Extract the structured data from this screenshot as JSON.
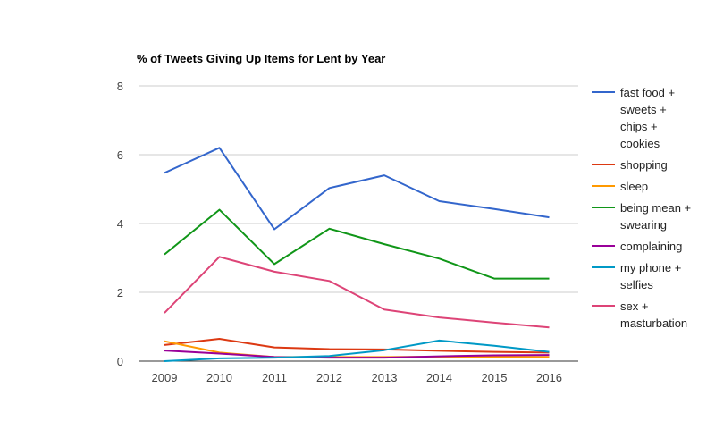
{
  "chart_data": {
    "type": "line",
    "title": "% of Tweets Giving Up Items for Lent by Year",
    "xlabel": "",
    "ylabel": "",
    "x": [
      "2009",
      "2010",
      "2011",
      "2012",
      "2013",
      "2014",
      "2015",
      "2016"
    ],
    "ylim": [
      0,
      8
    ],
    "yticks": [
      "0",
      "2",
      "4",
      "6",
      "8"
    ],
    "grid": true,
    "legend_position": "right",
    "series": [
      {
        "name": "fast food + sweets + chips + cookies",
        "legend_lines": [
          "fast food +",
          "sweets +",
          "chips +",
          "cookies"
        ],
        "color": "#3366cc",
        "values": [
          5.47,
          6.2,
          3.83,
          5.03,
          5.4,
          4.65,
          4.42,
          4.18
        ]
      },
      {
        "name": "shopping",
        "legend_lines": [
          "shopping"
        ],
        "color": "#dc3912",
        "values": [
          0.47,
          0.65,
          0.4,
          0.35,
          0.34,
          0.3,
          0.27,
          0.25
        ]
      },
      {
        "name": "sleep",
        "legend_lines": [
          "sleep"
        ],
        "color": "#ff9900",
        "values": [
          0.58,
          0.25,
          0.12,
          0.12,
          0.12,
          0.13,
          0.13,
          0.12
        ]
      },
      {
        "name": "being mean + swearing",
        "legend_lines": [
          "being mean +",
          "swearing"
        ],
        "color": "#109618",
        "values": [
          3.1,
          4.4,
          2.82,
          3.85,
          3.4,
          2.98,
          2.4,
          2.4
        ]
      },
      {
        "name": "complaining",
        "legend_lines": [
          "complaining"
        ],
        "color": "#990099",
        "values": [
          0.31,
          0.22,
          0.12,
          0.1,
          0.1,
          0.14,
          0.17,
          0.18
        ]
      },
      {
        "name": "my phone + selfies",
        "legend_lines": [
          "my phone +",
          "selfies"
        ],
        "color": "#0099c6",
        "values": [
          0.0,
          0.08,
          0.1,
          0.15,
          0.32,
          0.6,
          0.45,
          0.27
        ]
      },
      {
        "name": "sex + masturbation",
        "legend_lines": [
          "sex +",
          "masturbation"
        ],
        "color": "#dd4477",
        "values": [
          1.4,
          3.03,
          2.6,
          2.33,
          1.5,
          1.27,
          1.12,
          0.98
        ]
      }
    ]
  }
}
